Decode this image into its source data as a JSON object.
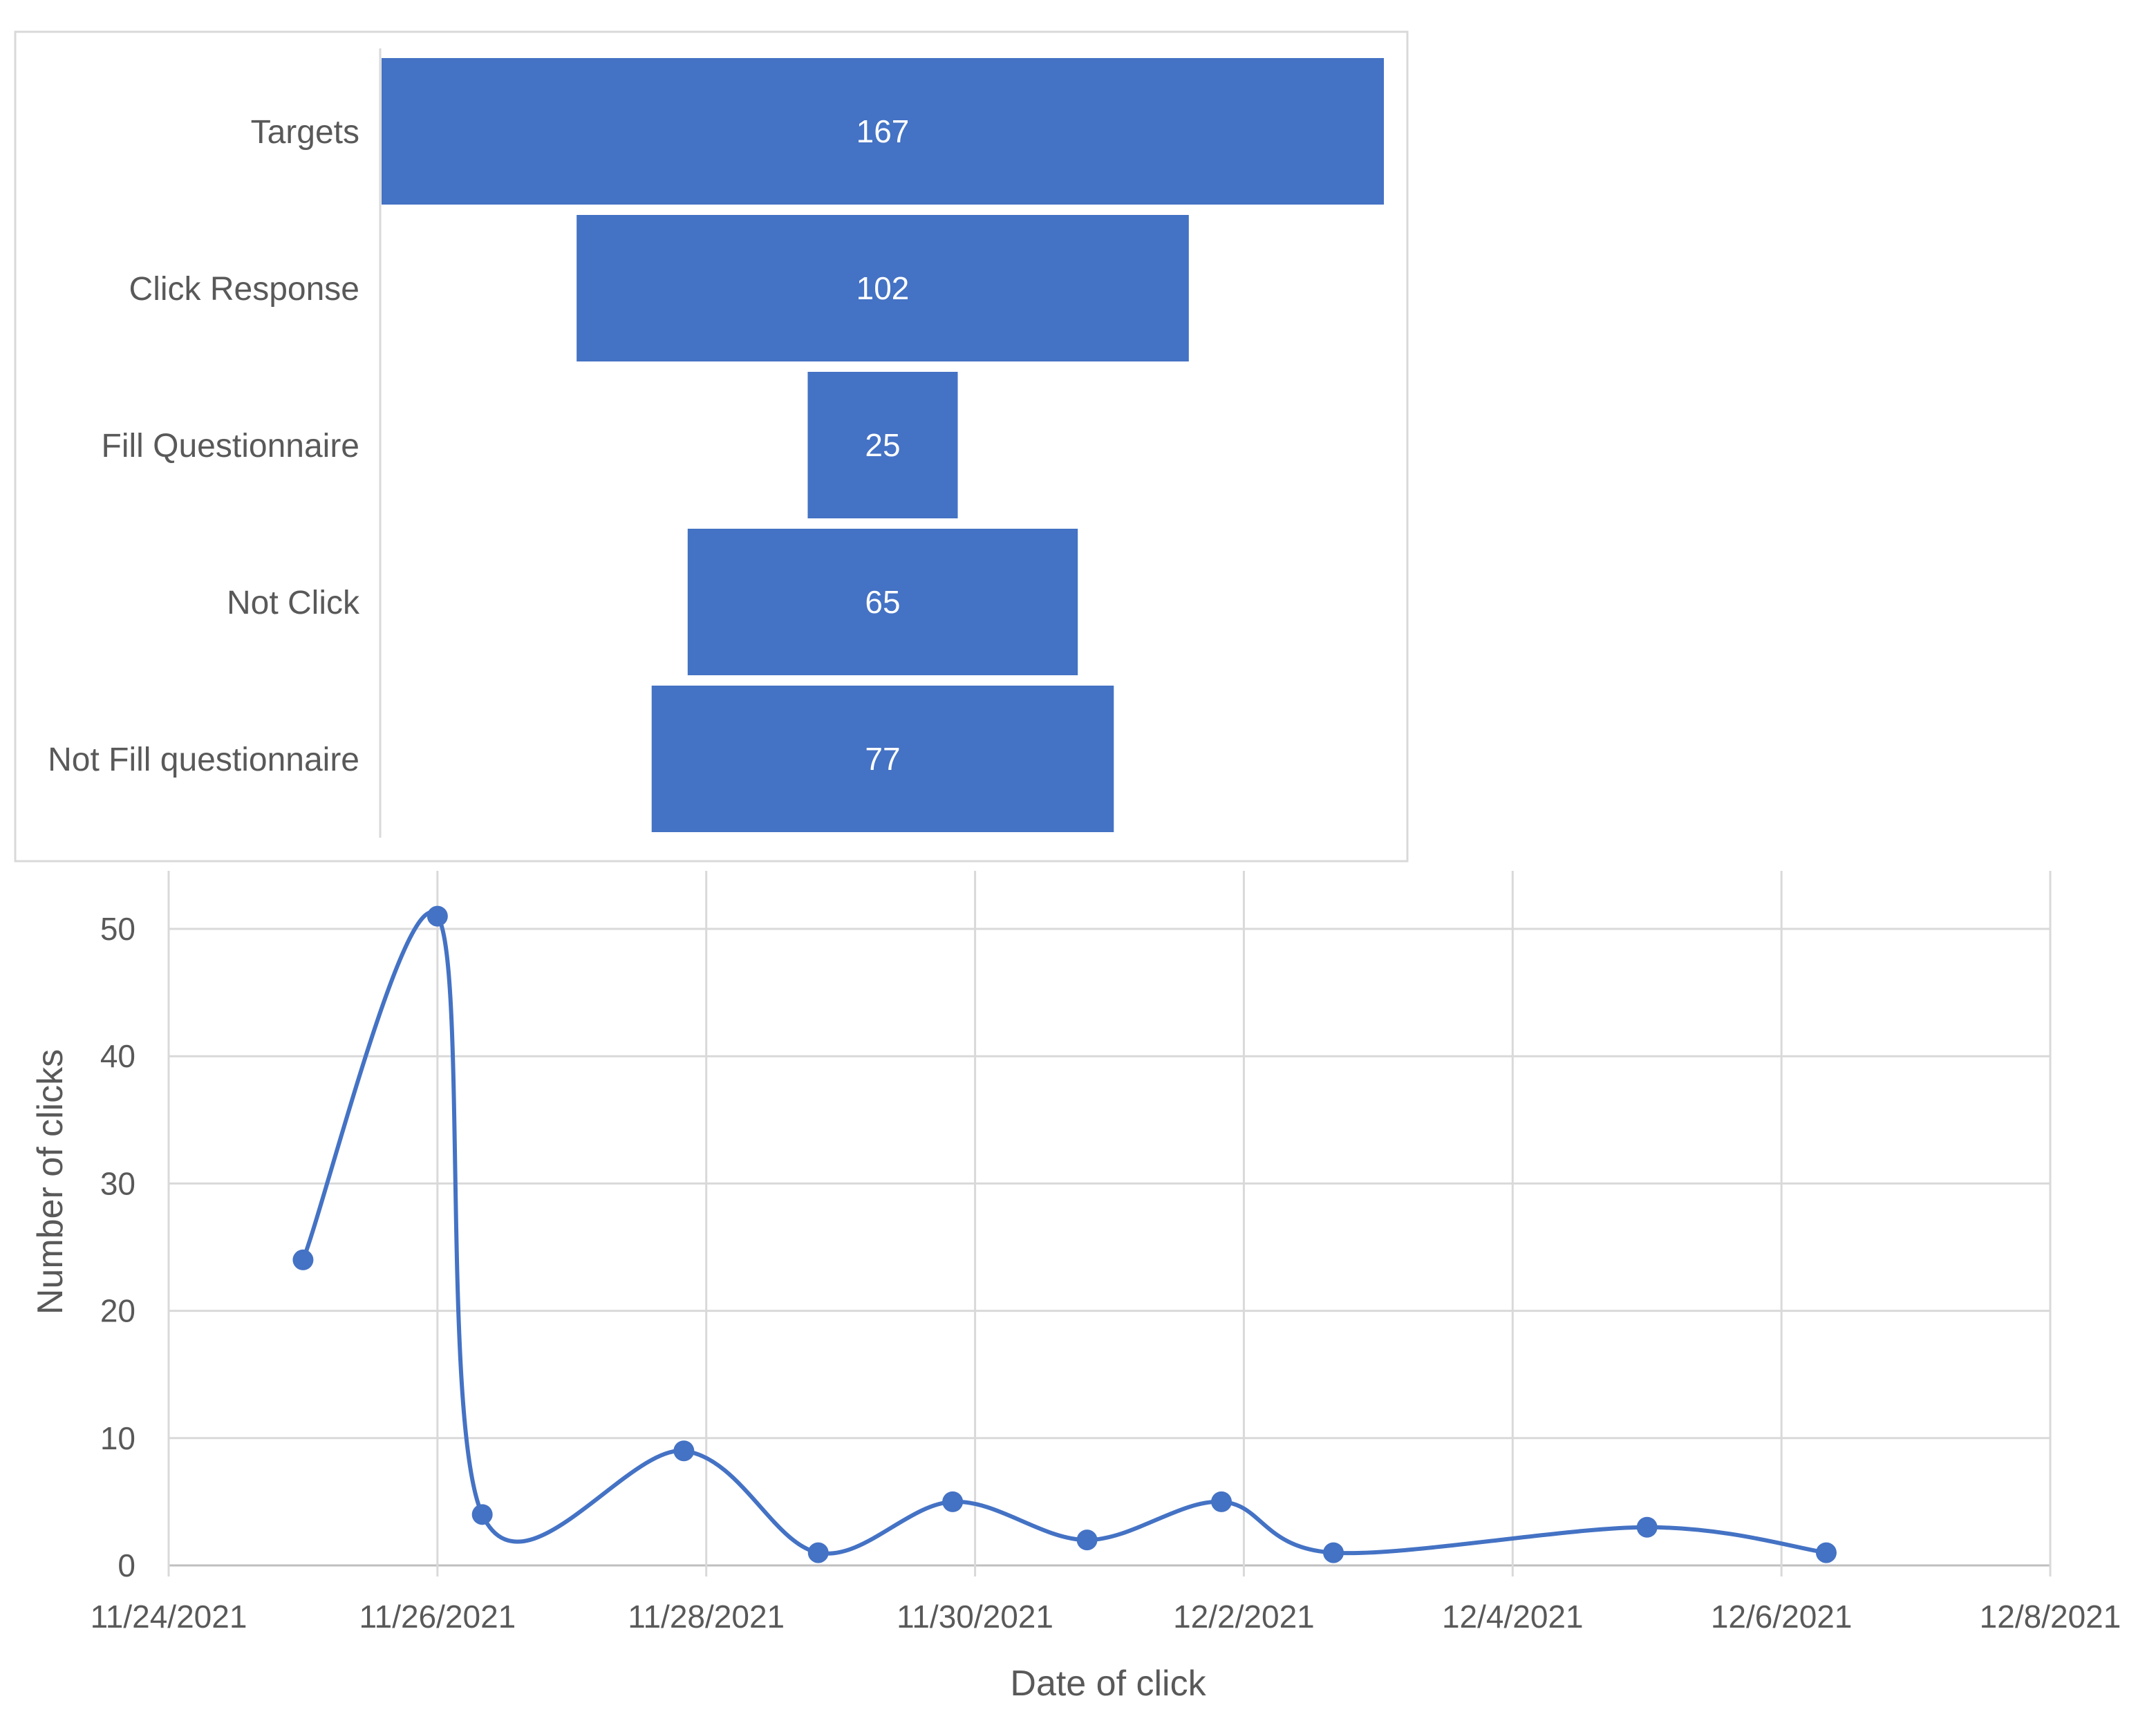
{
  "colors": {
    "bar_fill": "#4472C4",
    "line": "#4472C4",
    "grid": "#d9d9d9",
    "axis": "#bfbfbf",
    "text": "#595959"
  },
  "chart_data": [
    {
      "type": "bar",
      "variant": "funnel",
      "orientation": "horizontal",
      "categories": [
        "Targets",
        "Click Response",
        "Fill Questionnaire",
        "Not Click",
        "Not Fill questionnaire"
      ],
      "values": [
        167,
        102,
        25,
        65,
        77
      ],
      "data_labels": [
        "167",
        "102",
        "25",
        "65",
        "77"
      ],
      "title": "",
      "xlabel": "",
      "ylabel": "",
      "grid": false,
      "legend": "none"
    },
    {
      "type": "line",
      "smooth": true,
      "markers": true,
      "x": [
        "11/25/2021",
        "11/26/2021",
        "11/26/2021 08:00",
        "11/27/2021 20:00",
        "11/28/2021 20:00",
        "11/29/2021 20:00",
        "11/30/2021 20:00",
        "12/1/2021 20:00",
        "12/2/2021 16:00",
        "12/5/2021",
        "12/6/2021 08:00"
      ],
      "series": [
        {
          "values": [
            24,
            51,
            4,
            9,
            1,
            5,
            2,
            5,
            1,
            3,
            1
          ]
        }
      ],
      "title": "",
      "xlabel": "Date of click",
      "ylabel": "Number of clicks",
      "xlim": [
        "11/24/2021",
        "12/8/2021"
      ],
      "ylim": [
        0,
        55
      ],
      "x_ticks": [
        "11/24/2021",
        "11/26/2021",
        "11/28/2021",
        "11/30/2021",
        "12/2/2021",
        "12/4/2021",
        "12/6/2021",
        "12/8/2021"
      ],
      "y_ticks": [
        "0",
        "10",
        "20",
        "30",
        "40",
        "50"
      ],
      "grid": true,
      "legend": "none"
    }
  ]
}
